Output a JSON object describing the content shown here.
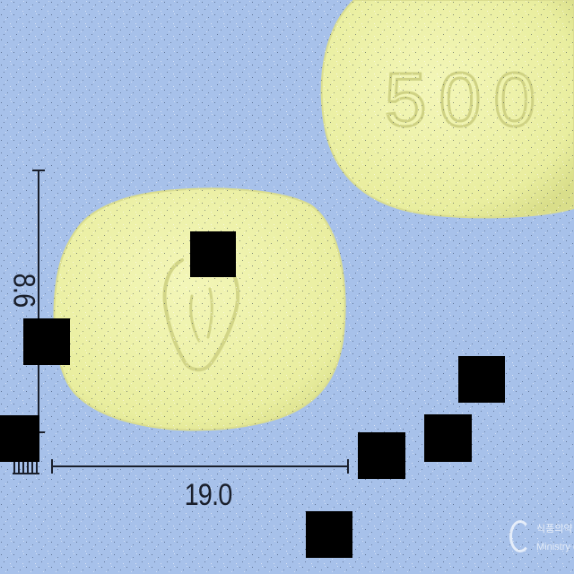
{
  "photo": {
    "background_color": "#a7c1ea",
    "tablet_color": "#eef2a9",
    "tablet_edge_color": "#d7da8c",
    "imprint_color": "#d4d68a"
  },
  "tablets": [
    {
      "imprint": "500"
    },
    {
      "imprint": ""
    }
  ],
  "dimensions": {
    "width_label": "19.0",
    "height_label": "8.6",
    "line_color": "#1a1f2b"
  },
  "watermark": {
    "line1": "식품의약",
    "line2": "Ministry of F"
  }
}
